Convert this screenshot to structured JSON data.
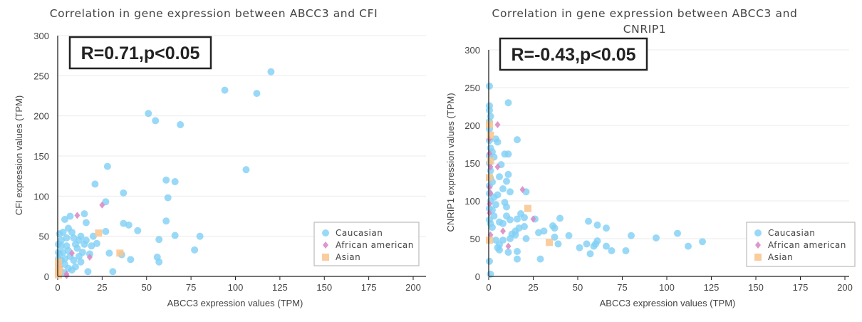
{
  "chart_data": [
    {
      "type": "scatter",
      "title": "Correlation in gene expression between ABCC3 and CFI",
      "annotation": "R=0.71,p<0.05",
      "xlabel": "ABCC3 expression values (TPM)",
      "ylabel": "CFI expression values (TPM)",
      "xlim": [
        0,
        200
      ],
      "ylim": [
        0,
        300
      ],
      "xticks": [
        "0",
        "25",
        "50",
        "75",
        "100",
        "125",
        "150",
        "175",
        "200"
      ],
      "yticks": [
        "0",
        "50",
        "100",
        "150",
        "200",
        "250",
        "300"
      ],
      "grid": "horizontal",
      "legend_position": "bottom-right",
      "series": [
        {
          "name": "Caucasian",
          "color": "#7fd0f5",
          "marker": "circle",
          "points": [
            [
              120,
              255
            ],
            [
              94,
              232
            ],
            [
              112,
              228
            ],
            [
              51,
              203
            ],
            [
              55,
              194
            ],
            [
              69,
              189
            ],
            [
              106,
              133
            ],
            [
              28,
              137
            ],
            [
              61,
              120
            ],
            [
              66,
              118
            ],
            [
              21,
              115
            ],
            [
              37,
              104
            ],
            [
              62,
              98
            ],
            [
              27,
              93
            ],
            [
              15,
              78
            ],
            [
              16,
              67
            ],
            [
              61,
              69
            ],
            [
              37,
              66
            ],
            [
              40,
              64
            ],
            [
              45,
              57
            ],
            [
              66,
              51
            ],
            [
              80,
              50
            ],
            [
              57,
              46
            ],
            [
              27,
              56
            ],
            [
              7,
              75
            ],
            [
              4,
              71
            ],
            [
              77,
              33
            ],
            [
              56,
              24
            ],
            [
              57,
              18
            ],
            [
              36,
              27
            ],
            [
              41,
              21
            ],
            [
              29,
              29
            ],
            [
              17,
              6
            ],
            [
              31,
              6
            ],
            [
              22,
              41
            ],
            [
              20,
              50
            ],
            [
              18,
              28
            ],
            [
              14,
              30
            ],
            [
              12,
              45
            ],
            [
              10,
              40
            ],
            [
              8,
              55
            ],
            [
              6,
              60
            ],
            [
              3,
              55
            ],
            [
              1,
              53
            ],
            [
              2,
              45
            ],
            [
              5,
              38
            ],
            [
              3,
              30
            ],
            [
              7,
              25
            ],
            [
              9,
              20
            ],
            [
              11,
              35
            ],
            [
              13,
              18
            ],
            [
              2,
              20
            ],
            [
              1,
              28
            ],
            [
              4,
              15
            ],
            [
              6,
              10
            ],
            [
              8,
              8
            ],
            [
              0,
              30
            ],
            [
              0,
              22
            ],
            [
              1,
              10
            ],
            [
              3,
              5
            ],
            [
              5,
              48
            ],
            [
              9,
              48
            ],
            [
              13,
              50
            ],
            [
              15,
              40
            ],
            [
              2,
              38
            ],
            [
              0,
              40
            ],
            [
              4,
              22
            ],
            [
              6,
              32
            ],
            [
              10,
              12
            ],
            [
              12,
              25
            ],
            [
              16,
              45
            ],
            [
              19,
              38
            ],
            [
              0,
              15
            ],
            [
              1,
              5
            ]
          ]
        },
        {
          "name": "African american",
          "color": "#d98cc4",
          "marker": "diamond",
          "points": [
            [
              25,
              89
            ],
            [
              11,
              76
            ],
            [
              8,
              29
            ],
            [
              18,
              24
            ],
            [
              5,
              3
            ],
            [
              5,
              1
            ],
            [
              1,
              12
            ],
            [
              0,
              8
            ]
          ]
        },
        {
          "name": "Asian",
          "color": "#f9c48e",
          "marker": "square",
          "points": [
            [
              23,
              54
            ],
            [
              35,
              29
            ],
            [
              0,
              18
            ],
            [
              0,
              10
            ],
            [
              0,
              5
            ],
            [
              0,
              2
            ],
            [
              1,
              7
            ]
          ]
        }
      ]
    },
    {
      "type": "scatter",
      "title": "Correlation in gene expression between ABCC3 and CNRIP1",
      "title_lines": [
        "Correlation in gene expression between ABCC3 and",
        "CNRIP1"
      ],
      "annotation": "R=-0.43,p<0.05",
      "xlabel": "ABCC3 expression values (TPM)",
      "ylabel": "CNRIP1 expression values (TPM)",
      "xlim": [
        0,
        200
      ],
      "ylim": [
        0,
        300
      ],
      "xticks": [
        "0",
        "25",
        "50",
        "75",
        "100",
        "125",
        "150",
        "175",
        "200"
      ],
      "yticks": [
        "0",
        "50",
        "100",
        "150",
        "200",
        "250",
        "300"
      ],
      "grid": "horizontal",
      "legend_position": "bottom-right",
      "series": [
        {
          "name": "Caucasian",
          "color": "#7fd0f5",
          "marker": "circle",
          "points": [
            [
              0,
              252
            ],
            [
              11,
              230
            ],
            [
              0,
              226
            ],
            [
              0,
              220
            ],
            [
              1,
              212
            ],
            [
              0,
              205
            ],
            [
              0,
              195
            ],
            [
              16,
              181
            ],
            [
              4,
              182
            ],
            [
              5,
              178
            ],
            [
              9,
              162
            ],
            [
              11,
              162
            ],
            [
              1,
              170
            ],
            [
              2,
              165
            ],
            [
              0,
              160
            ],
            [
              3,
              158
            ],
            [
              7,
              148
            ],
            [
              6,
              132
            ],
            [
              11,
              135
            ],
            [
              1,
              140
            ],
            [
              2,
              125
            ],
            [
              10,
              126
            ],
            [
              8,
              116
            ],
            [
              12,
              112
            ],
            [
              21,
              112
            ],
            [
              3,
              105
            ],
            [
              5,
              108
            ],
            [
              1,
              100
            ],
            [
              9,
              98
            ],
            [
              10,
              92
            ],
            [
              4,
              95
            ],
            [
              2,
              88
            ],
            [
              16,
              76
            ],
            [
              18,
              83
            ],
            [
              20,
              78
            ],
            [
              26,
              76
            ],
            [
              3,
              80
            ],
            [
              6,
              72
            ],
            [
              8,
              70
            ],
            [
              10,
              80
            ],
            [
              12,
              75
            ],
            [
              1,
              70
            ],
            [
              2,
              65
            ],
            [
              15,
              60
            ],
            [
              17,
              64
            ],
            [
              20,
              66
            ],
            [
              4,
              48
            ],
            [
              6,
              42
            ],
            [
              8,
              48
            ],
            [
              12,
              50
            ],
            [
              13,
              56
            ],
            [
              15,
              55
            ],
            [
              21,
              50
            ],
            [
              28,
              58
            ],
            [
              31,
              60
            ],
            [
              36,
              67
            ],
            [
              37,
              64
            ],
            [
              40,
              77
            ],
            [
              37,
              52
            ],
            [
              39,
              43
            ],
            [
              45,
              54
            ],
            [
              55,
              43
            ],
            [
              56,
              73
            ],
            [
              61,
              68
            ],
            [
              66,
              64
            ],
            [
              51,
              38
            ],
            [
              57,
              30
            ],
            [
              59,
              40
            ],
            [
              61,
              47
            ],
            [
              60,
              43
            ],
            [
              66,
              40
            ],
            [
              69,
              34
            ],
            [
              77,
              34
            ],
            [
              80,
              54
            ],
            [
              94,
              51
            ],
            [
              106,
              57
            ],
            [
              112,
              40
            ],
            [
              120,
              46
            ],
            [
              0,
              20
            ],
            [
              1,
              3
            ],
            [
              16,
              23
            ],
            [
              29,
              23
            ],
            [
              11,
              32
            ],
            [
              16,
              33
            ],
            [
              6,
              35
            ],
            [
              5,
              38
            ],
            [
              0,
              120
            ],
            [
              1,
              130
            ],
            [
              0,
              150
            ],
            [
              0,
              180
            ],
            [
              0,
              110
            ],
            [
              0,
              90
            ],
            [
              0,
              75
            ]
          ]
        },
        {
          "name": "African american",
          "color": "#d98cc4",
          "marker": "diamond",
          "points": [
            [
              5,
              201
            ],
            [
              0,
              182
            ],
            [
              0,
              163
            ],
            [
              1,
              145
            ],
            [
              5,
              145
            ],
            [
              0,
              118
            ],
            [
              1,
              110
            ],
            [
              19,
              115
            ],
            [
              0,
              96
            ],
            [
              0,
              84
            ],
            [
              25,
              76
            ],
            [
              8,
              60
            ],
            [
              1,
              55
            ],
            [
              11,
              40
            ]
          ]
        },
        {
          "name": "Asian",
          "color": "#f9c48e",
          "marker": "square",
          "points": [
            [
              0,
              201
            ],
            [
              1,
              187
            ],
            [
              1,
              153
            ],
            [
              0,
              131
            ],
            [
              22,
              90
            ],
            [
              34,
              45
            ],
            [
              0,
              48
            ]
          ]
        }
      ]
    }
  ]
}
